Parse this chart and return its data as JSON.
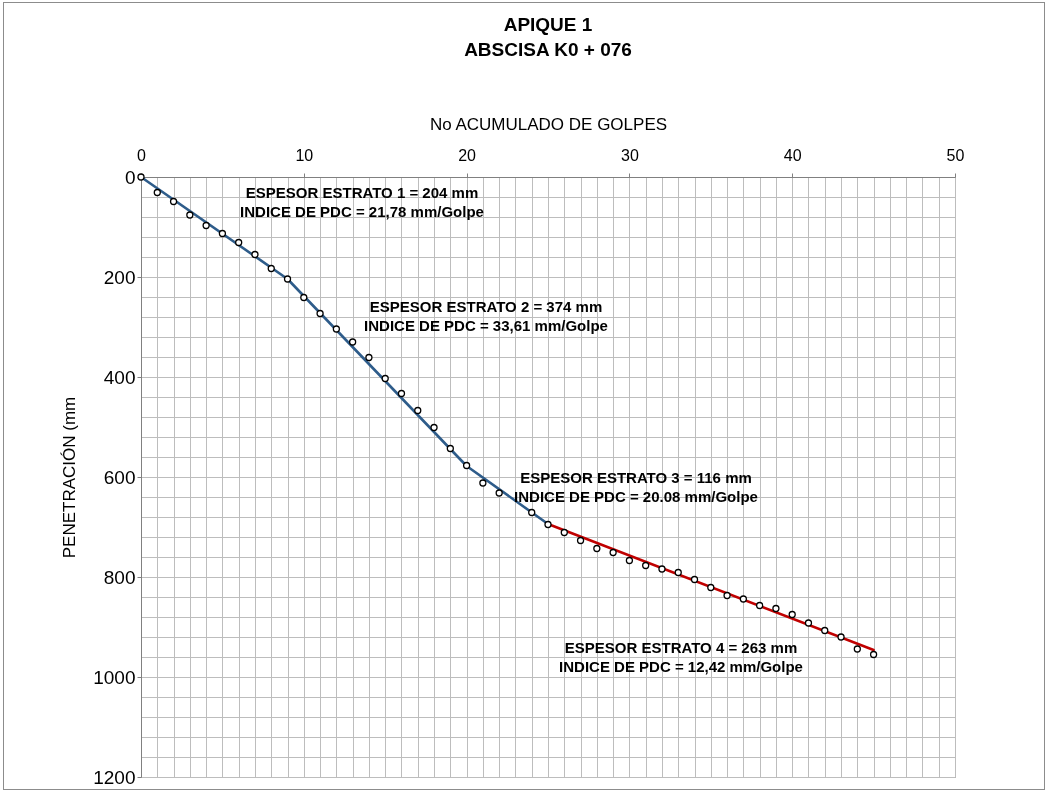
{
  "chart_data": {
    "type": "scatter",
    "title": "APIQUE 1",
    "subtitle": "ABSCISA K0 + 076",
    "xlabel": "No ACUMULADO DE GOLPES",
    "ylabel": "PENETRACIÓN (mm",
    "xlim": [
      0,
      50
    ],
    "xticks": [
      0,
      {
        "value": 1,
        "label": null
      },
      {
        "value": 2,
        "label": null
      },
      {
        "value": 3,
        "label": null
      },
      {
        "value": 4,
        "label": null
      },
      {
        "value": 5,
        "label": null
      },
      {
        "value": 6,
        "label": null
      },
      {
        "value": 7,
        "label": null
      },
      {
        "value": 8,
        "label": null
      },
      {
        "value": 9,
        "label": null
      },
      10,
      {
        "value": 11,
        "label": null
      },
      {
        "value": 12,
        "label": null
      },
      {
        "value": 13,
        "label": null
      },
      {
        "value": 14,
        "label": null
      },
      {
        "value": 15,
        "label": null
      },
      {
        "value": 16,
        "label": null
      },
      {
        "value": 17,
        "label": null
      },
      {
        "value": 18,
        "label": null
      },
      {
        "value": 19,
        "label": null
      },
      20,
      {
        "value": 21,
        "label": null
      },
      {
        "value": 22,
        "label": null
      },
      {
        "value": 23,
        "label": null
      },
      {
        "value": 24,
        "label": null
      },
      {
        "value": 25,
        "label": null
      },
      {
        "value": 26,
        "label": null
      },
      {
        "value": 27,
        "label": null
      },
      {
        "value": 28,
        "label": null
      },
      {
        "value": 29,
        "label": null
      },
      30,
      {
        "value": 31,
        "label": null
      },
      {
        "value": 32,
        "label": null
      },
      {
        "value": 33,
        "label": null
      },
      {
        "value": 34,
        "label": null
      },
      {
        "value": 35,
        "label": null
      },
      {
        "value": 36,
        "label": null
      },
      {
        "value": 37,
        "label": null
      },
      {
        "value": 38,
        "label": null
      },
      {
        "value": 39,
        "label": null
      },
      40,
      {
        "value": 41,
        "label": null
      },
      {
        "value": 42,
        "label": null
      },
      {
        "value": 43,
        "label": null
      },
      {
        "value": 44,
        "label": null
      },
      {
        "value": 45,
        "label": null
      },
      {
        "value": 46,
        "label": null
      },
      {
        "value": 47,
        "label": null
      },
      {
        "value": 48,
        "label": null
      },
      {
        "value": 49,
        "label": null
      },
      50
    ],
    "ylim": [
      1200,
      0
    ],
    "yticks": [
      0,
      {
        "value": 40,
        "label": null
      },
      {
        "value": 80,
        "label": null
      },
      {
        "value": 120,
        "label": null
      },
      {
        "value": 160,
        "label": null
      },
      200,
      {
        "value": 240,
        "label": null
      },
      {
        "value": 280,
        "label": null
      },
      {
        "value": 320,
        "label": null
      },
      {
        "value": 360,
        "label": null
      },
      400,
      {
        "value": 440,
        "label": null
      },
      {
        "value": 480,
        "label": null
      },
      {
        "value": 520,
        "label": null
      },
      {
        "value": 560,
        "label": null
      },
      600,
      {
        "value": 640,
        "label": null
      },
      {
        "value": 680,
        "label": null
      },
      {
        "value": 720,
        "label": null
      },
      {
        "value": 760,
        "label": null
      },
      800,
      {
        "value": 840,
        "label": null
      },
      {
        "value": 880,
        "label": null
      },
      {
        "value": 920,
        "label": null
      },
      {
        "value": 960,
        "label": null
      },
      1000,
      {
        "value": 1040,
        "label": null
      },
      {
        "value": 1080,
        "label": null
      },
      {
        "value": 1120,
        "label": null
      },
      {
        "value": 1160,
        "label": null
      },
      1200
    ],
    "grid": true,
    "series": [
      {
        "type": "line",
        "x": [
          0,
          9,
          20,
          25
        ],
        "values": [
          0,
          204,
          578,
          694
        ],
        "color": "#2e5c8a"
      },
      {
        "type": "line",
        "x": [
          25,
          45
        ],
        "values": [
          694,
          946
        ],
        "color": "#c00000"
      },
      {
        "marker": "circle",
        "color": "#000000",
        "x": [
          0,
          1,
          2,
          3,
          4,
          5,
          6,
          7,
          8,
          9,
          10,
          11,
          12,
          13,
          14,
          15,
          16,
          17,
          18,
          19,
          20,
          21,
          22,
          23,
          24,
          25,
          26,
          27,
          28,
          29,
          30,
          31,
          32,
          33,
          34,
          35,
          36,
          37,
          38,
          39,
          40,
          41,
          42,
          43,
          44,
          45
        ],
        "values": [
          0,
          31,
          49,
          76,
          97,
          113,
          131,
          155,
          183,
          204,
          241,
          273,
          304,
          330,
          361,
          403,
          433,
          467,
          501,
          543,
          577,
          612,
          632,
          null,
          671,
          695,
          711,
          727,
          743,
          751,
          767,
          777,
          784,
          791,
          805,
          821,
          837,
          844,
          857,
          863,
          875,
          892,
          907,
          920,
          944,
          955
        ]
      }
    ],
    "annotations": [
      "ESPESOR ESTRATO 1 = 204 mm\nINDICE DE PDC = 21,78 mm/Golpe",
      "ESPESOR ESTRATO 2 = 374 mm\nINDICE DE PDC = 33,61 mm/Golpe",
      "ESPESOR ESTRATO 3 = 116 mm\nINDICE DE PDC = 20.08 mm/Golpe",
      "ESPESOR ESTRATO 4 = 263 mm\nINDICE DE PDC = 12,42 mm/Golpe"
    ]
  }
}
